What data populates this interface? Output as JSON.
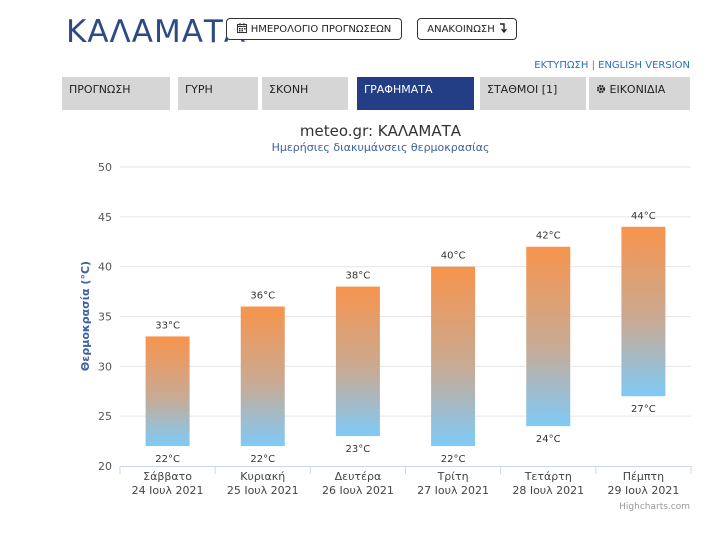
{
  "header": {
    "city": "ΚΑΛΑΜΑΤΑ",
    "forecast_calendar_label": "ΗΜΕΡΟΛΟΓΙΟ ΠΡΟΓΝΩΣΕΩΝ",
    "announcement_label": "ΑΝΑΚΟΙΝΩΣΗ",
    "print_link": "ΕΚΤΥΠΩΣΗ",
    "separator": "|",
    "english_link": "ENGLISH VERSION"
  },
  "tabs": [
    {
      "label": "ΠΡΟΓΝΩΣΗ",
      "active": false
    },
    {
      "label": "ΓΥΡΗ",
      "active": false
    },
    {
      "label": "ΣΚΟΝΗ",
      "active": false
    },
    {
      "label": "ΓΡΑΦΗΜΑΤΑ",
      "active": true
    },
    {
      "label": "ΣΤΑΘΜΟΙ [1]",
      "active": false
    },
    {
      "label": "ΕΙΚΟΝΙΔΙΑ",
      "active": false,
      "icon": "gear-icon"
    }
  ],
  "chart_data": {
    "type": "bar",
    "title": "meteo.gr: ΚΑΛΑΜΑΤΑ",
    "subtitle": "Ημερήσιες διακυμάνσεις θερμοκρασίας",
    "ylabel": "Θερμοκρασία (°C)",
    "xlabel": "",
    "ylim": [
      20,
      50
    ],
    "yticks": [
      20,
      25,
      30,
      35,
      40,
      45,
      50
    ],
    "grid": true,
    "categories": [
      {
        "day": "Σάββατο",
        "date": "24 Ιουλ 2021"
      },
      {
        "day": "Κυριακή",
        "date": "25 Ιουλ 2021"
      },
      {
        "day": "Δευτέρα",
        "date": "26 Ιουλ 2021"
      },
      {
        "day": "Τρίτη",
        "date": "27 Ιουλ 2021"
      },
      {
        "day": "Τετάρτη",
        "date": "28 Ιουλ 2021"
      },
      {
        "day": "Πέμπτη",
        "date": "29 Ιουλ 2021"
      }
    ],
    "low": [
      22,
      22,
      23,
      22,
      24,
      27
    ],
    "high": [
      33,
      36,
      38,
      40,
      42,
      44
    ],
    "unit": "°C",
    "colors": {
      "high": "#f7944d",
      "low": "#7fcaf7"
    }
  },
  "credit": "Highcharts.com"
}
